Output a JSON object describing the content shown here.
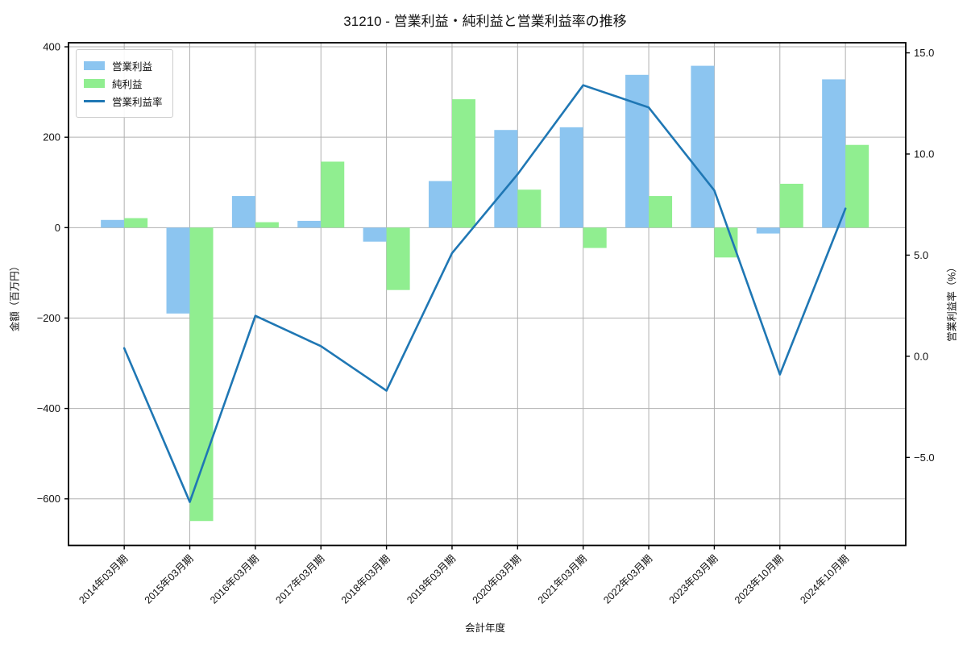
{
  "title": "31210 - 営業利益・純利益と営業利益率の推移",
  "chart_data": {
    "type": "bar+line",
    "title": "31210 - 営業利益・純利益と営業利益率の推移",
    "xlabel": "会計年度",
    "ylabel_left": "金額（百万円）",
    "ylabel_right": "営業利益率（%）",
    "categories": [
      "2014年03月期",
      "2015年03月期",
      "2016年03月期",
      "2017年03月期",
      "2018年03月期",
      "2019年03月期",
      "2020年03月期",
      "2021年03月期",
      "2022年03月期",
      "2023年03月期",
      "2023年10月期",
      "2024年10月期"
    ],
    "series": [
      {
        "name": "営業利益",
        "kind": "bar",
        "axis": "left",
        "color": "#8cc5f0",
        "values": [
          17,
          -190,
          70,
          15,
          -31,
          103,
          216,
          222,
          338,
          358,
          -13,
          328
        ]
      },
      {
        "name": "純利益",
        "kind": "bar",
        "axis": "left",
        "color": "#90ee90",
        "values": [
          21,
          -649,
          12,
          146,
          -138,
          284,
          84,
          -45,
          70,
          -66,
          97,
          183
        ]
      },
      {
        "name": "営業利益率",
        "kind": "line",
        "axis": "right",
        "color": "#1f77b4",
        "values": [
          0.4,
          -7.2,
          2.0,
          0.5,
          -1.7,
          5.1,
          9.0,
          13.4,
          12.3,
          8.2,
          -0.9,
          7.3
        ]
      }
    ],
    "yticks_left": [
      400,
      200,
      0,
      -200,
      -400,
      -600
    ],
    "yticks_right": [
      15.0,
      10.0,
      5.0,
      0.0,
      -5.0
    ],
    "ylim_left": [
      -703,
      409
    ],
    "ylim_right": [
      -9.35,
      15.5
    ],
    "xlim": [
      -0.85,
      11.92
    ],
    "grid": true,
    "legend_position": "upper left",
    "grid_color": "#b0b0b0",
    "spine_color": "#000000"
  }
}
